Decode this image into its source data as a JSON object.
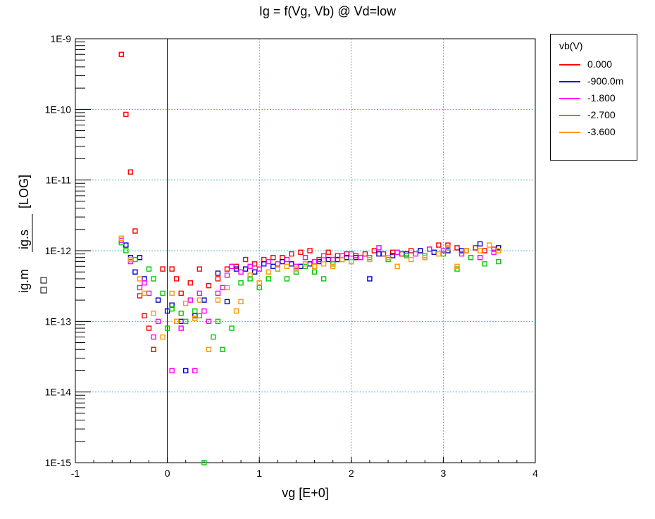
{
  "chart_data": {
    "type": "scatter",
    "title": "Ig = f(Vg, Vb) @ Vd=low",
    "xlabel": "vg  [E+0]",
    "ylabel_parts": [
      "ig.m",
      "ig.s",
      "[LOG]"
    ],
    "xlim": [
      -1,
      4
    ],
    "ylim_log10": [
      -15,
      -9
    ],
    "x_ticks": [
      "-1",
      "0",
      "1",
      "2",
      "3",
      "4"
    ],
    "y_ticks": [
      "1E-15",
      "1E-14",
      "1E-13",
      "1E-12",
      "1E-11",
      "1E-10",
      "1E-9"
    ],
    "yscale": "log",
    "grid": true,
    "legend": {
      "title": "vb(V)",
      "placement": "right",
      "entries": [
        "0.000",
        "-900.0m",
        "-1.800",
        "-2.700",
        "-3.600"
      ]
    },
    "colors": [
      "#ff0000",
      "#0000cc",
      "#ff00ff",
      "#00cc00",
      "#ff9900"
    ],
    "series": [
      {
        "name": "0.000",
        "points": [
          [
            -0.5,
            6e-10
          ],
          [
            -0.45,
            8.5e-11
          ],
          [
            -0.4,
            1.3e-11
          ],
          [
            -0.35,
            1.9e-12
          ],
          [
            -0.3,
            2.3e-13
          ],
          [
            -0.25,
            1.2e-13
          ],
          [
            -0.2,
            8e-14
          ],
          [
            -0.15,
            4e-14
          ],
          [
            -0.05,
            5.5e-13
          ],
          [
            0.05,
            5.5e-13
          ],
          [
            0.1,
            4e-13
          ],
          [
            0.15,
            2.5e-13
          ],
          [
            0.25,
            3.5e-13
          ],
          [
            0.35,
            5.5e-13
          ],
          [
            0.45,
            3.2e-13
          ],
          [
            0.55,
            4e-13
          ],
          [
            0.65,
            5.5e-13
          ],
          [
            0.75,
            6e-13
          ],
          [
            0.85,
            7.5e-13
          ],
          [
            0.95,
            6.5e-13
          ],
          [
            1.05,
            7.5e-13
          ],
          [
            1.15,
            8e-13
          ],
          [
            1.25,
            8e-13
          ],
          [
            1.35,
            9e-13
          ],
          [
            1.45,
            9.5e-13
          ],
          [
            1.55,
            1e-12
          ],
          [
            1.65,
            7.5e-13
          ],
          [
            1.75,
            9.5e-13
          ],
          [
            1.85,
            8.5e-13
          ],
          [
            1.95,
            9e-13
          ],
          [
            2.05,
            8.5e-13
          ],
          [
            2.15,
            9e-13
          ],
          [
            2.25,
            1e-12
          ],
          [
            2.35,
            9e-13
          ],
          [
            2.45,
            9.5e-13
          ],
          [
            2.55,
            9e-13
          ],
          [
            2.65,
            1e-12
          ],
          [
            2.75,
            1e-12
          ],
          [
            2.85,
            1.05e-12
          ],
          [
            2.95,
            1.2e-12
          ],
          [
            3.05,
            1.2e-12
          ],
          [
            3.15,
            1.1e-12
          ],
          [
            3.25,
            1e-12
          ],
          [
            3.35,
            1.1e-12
          ],
          [
            3.45,
            1e-12
          ],
          [
            3.55,
            1.05e-12
          ]
        ]
      },
      {
        "name": "-900.0m",
        "points": [
          [
            -0.45,
            1.2e-12
          ],
          [
            -0.4,
            8e-13
          ],
          [
            -0.35,
            5e-13
          ],
          [
            -0.3,
            8e-13
          ],
          [
            -0.25,
            4e-13
          ],
          [
            -0.1,
            2e-13
          ],
          [
            0.0,
            1.4e-13
          ],
          [
            0.05,
            1.7e-13
          ],
          [
            0.15,
            1e-13
          ],
          [
            0.2,
            2e-14
          ],
          [
            0.3,
            1.2e-13
          ],
          [
            0.4,
            2e-13
          ],
          [
            0.55,
            4.8e-13
          ],
          [
            0.65,
            1.9e-13
          ],
          [
            0.75,
            5.5e-13
          ],
          [
            0.85,
            5.5e-13
          ],
          [
            0.95,
            5e-13
          ],
          [
            1.05,
            6.5e-13
          ],
          [
            1.15,
            6e-13
          ],
          [
            1.25,
            7e-13
          ],
          [
            1.35,
            6.5e-13
          ],
          [
            1.45,
            6e-13
          ],
          [
            1.55,
            6.5e-13
          ],
          [
            1.65,
            7e-13
          ],
          [
            1.75,
            7.5e-13
          ],
          [
            1.85,
            7.5e-13
          ],
          [
            1.95,
            8e-13
          ],
          [
            2.05,
            8e-13
          ],
          [
            2.2,
            4e-13
          ],
          [
            2.3,
            9e-13
          ],
          [
            2.45,
            8.5e-13
          ],
          [
            2.6,
            9e-13
          ],
          [
            2.75,
            1e-12
          ],
          [
            2.9,
            9.5e-13
          ],
          [
            3.05,
            1e-12
          ],
          [
            3.2,
            1e-12
          ],
          [
            3.4,
            1.25e-12
          ],
          [
            3.6,
            1.1e-12
          ]
        ]
      },
      {
        "name": "-1.800",
        "points": [
          [
            -0.5,
            1.4e-12
          ],
          [
            -0.4,
            7e-13
          ],
          [
            -0.3,
            3e-13
          ],
          [
            -0.25,
            3.5e-13
          ],
          [
            -0.2,
            2.5e-13
          ],
          [
            -0.15,
            6e-14
          ],
          [
            -0.1,
            1e-13
          ],
          [
            0.05,
            2e-14
          ],
          [
            0.15,
            8e-14
          ],
          [
            0.25,
            2e-13
          ],
          [
            0.3,
            2e-14
          ],
          [
            0.35,
            2.5e-13
          ],
          [
            0.4,
            1.4e-13
          ],
          [
            0.45,
            1e-13
          ],
          [
            0.55,
            2.5e-13
          ],
          [
            0.6,
            3e-13
          ],
          [
            0.65,
            4.5e-13
          ],
          [
            0.7,
            6e-13
          ],
          [
            0.8,
            5e-13
          ],
          [
            0.9,
            6e-13
          ],
          [
            1.0,
            5.5e-13
          ],
          [
            1.1,
            7e-13
          ],
          [
            1.2,
            6.5e-13
          ],
          [
            1.3,
            7.5e-13
          ],
          [
            1.4,
            6e-13
          ],
          [
            1.5,
            8e-13
          ],
          [
            1.6,
            7e-13
          ],
          [
            1.7,
            8.5e-13
          ],
          [
            1.8,
            7.5e-13
          ],
          [
            1.9,
            8.5e-13
          ],
          [
            2.0,
            9e-13
          ],
          [
            2.1,
            8e-13
          ],
          [
            2.3,
            1.1e-12
          ],
          [
            2.5,
            9.5e-13
          ],
          [
            2.7,
            9e-13
          ],
          [
            2.85,
            1.05e-12
          ],
          [
            3.0,
            1e-12
          ],
          [
            3.2,
            9e-13
          ],
          [
            3.4,
            8e-13
          ],
          [
            3.55,
            9.5e-13
          ]
        ]
      },
      {
        "name": "-2.700",
        "points": [
          [
            -0.5,
            1.3e-12
          ],
          [
            -0.45,
            1e-12
          ],
          [
            -0.35,
            7.5e-13
          ],
          [
            -0.2,
            5.5e-13
          ],
          [
            -0.15,
            4e-13
          ],
          [
            -0.05,
            2.5e-13
          ],
          [
            0.0,
            8e-14
          ],
          [
            0.05,
            1.5e-13
          ],
          [
            0.15,
            1.3e-13
          ],
          [
            0.2,
            1e-13
          ],
          [
            0.3,
            1.4e-13
          ],
          [
            0.35,
            1.2e-13
          ],
          [
            0.4,
            1e-15
          ],
          [
            0.5,
            6e-14
          ],
          [
            0.55,
            1e-13
          ],
          [
            0.6,
            4e-14
          ],
          [
            0.7,
            8e-14
          ],
          [
            0.8,
            3.5e-13
          ],
          [
            0.9,
            4e-13
          ],
          [
            1.0,
            3e-13
          ],
          [
            1.1,
            4e-13
          ],
          [
            1.2,
            5.5e-13
          ],
          [
            1.3,
            4e-13
          ],
          [
            1.4,
            5e-13
          ],
          [
            1.5,
            6e-13
          ],
          [
            1.6,
            5e-13
          ],
          [
            1.7,
            4e-13
          ],
          [
            1.8,
            6.5e-13
          ],
          [
            1.9,
            7.5e-13
          ],
          [
            2.0,
            7e-13
          ],
          [
            2.2,
            8e-13
          ],
          [
            2.4,
            7.5e-13
          ],
          [
            2.6,
            8.5e-13
          ],
          [
            2.8,
            8.5e-13
          ],
          [
            3.0,
            9e-13
          ],
          [
            3.15,
            5.5e-13
          ],
          [
            3.3,
            8e-13
          ],
          [
            3.45,
            6.5e-13
          ],
          [
            3.6,
            7e-13
          ]
        ]
      },
      {
        "name": "-3.600",
        "points": [
          [
            -0.5,
            1.5e-12
          ],
          [
            -0.4,
            7.5e-13
          ],
          [
            -0.3,
            4e-13
          ],
          [
            -0.25,
            2.5e-13
          ],
          [
            -0.15,
            1.3e-13
          ],
          [
            -0.05,
            6e-14
          ],
          [
            0.05,
            2.5e-13
          ],
          [
            0.1,
            1e-13
          ],
          [
            0.2,
            1.8e-13
          ],
          [
            0.3,
            1.1e-13
          ],
          [
            0.35,
            2e-13
          ],
          [
            0.45,
            4e-14
          ],
          [
            0.55,
            2e-13
          ],
          [
            0.65,
            3e-13
          ],
          [
            0.75,
            1.4e-13
          ],
          [
            0.8,
            1.9e-13
          ],
          [
            0.9,
            4.5e-13
          ],
          [
            1.0,
            3.5e-13
          ],
          [
            1.1,
            5e-13
          ],
          [
            1.2,
            5.5e-13
          ],
          [
            1.3,
            6e-13
          ],
          [
            1.4,
            5.5e-13
          ],
          [
            1.5,
            6.5e-13
          ],
          [
            1.6,
            6e-13
          ],
          [
            1.7,
            6.5e-13
          ],
          [
            1.8,
            6e-13
          ],
          [
            1.9,
            7.5e-13
          ],
          [
            2.0,
            7e-13
          ],
          [
            2.2,
            7.5e-13
          ],
          [
            2.4,
            8e-13
          ],
          [
            2.5,
            6e-13
          ],
          [
            2.65,
            7.5e-13
          ],
          [
            2.8,
            8e-13
          ],
          [
            2.95,
            9e-13
          ],
          [
            3.05,
            1.1e-12
          ],
          [
            3.15,
            6e-13
          ],
          [
            3.25,
            1e-12
          ],
          [
            3.4,
            1e-12
          ],
          [
            3.5,
            1.2e-12
          ],
          [
            3.6,
            1e-12
          ]
        ]
      }
    ]
  }
}
